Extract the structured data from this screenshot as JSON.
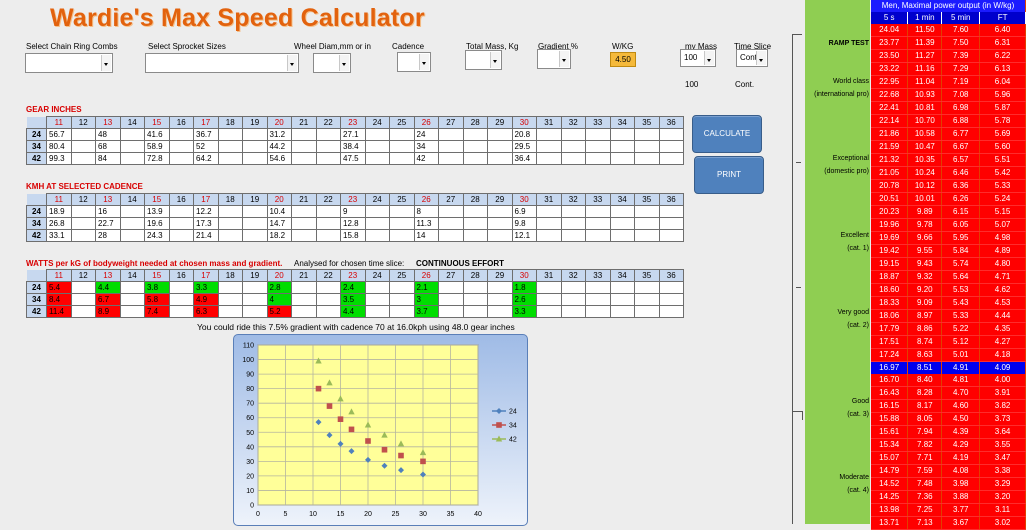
{
  "app": {
    "title": "Wardie's Max Speed Calculator"
  },
  "controls": {
    "chain_ring": {
      "label": "Select Chain Ring Combs",
      "value": ""
    },
    "sprocket": {
      "label": "Select Sprocket Sizes",
      "value": ""
    },
    "wheel": {
      "label": "Wheel Diam,mm or in",
      "value": ""
    },
    "cadence": {
      "label": "Cadence",
      "value": ""
    },
    "mass": {
      "label": "Total Mass, Kg",
      "value": ""
    },
    "gradient": {
      "label": "Gradient %",
      "value": ""
    },
    "wkg": {
      "label": "W/KG",
      "value": "4.50"
    },
    "my_mass": {
      "label": "my Mass",
      "value": "100",
      "below": "100"
    },
    "time_slice": {
      "label": "Time Slice",
      "value": "Cont",
      "below": "Cont."
    }
  },
  "buttons": {
    "calculate": "CALCULATE",
    "print": "PRINT"
  },
  "columns": [
    "11",
    "12",
    "13",
    "14",
    "15",
    "16",
    "17",
    "18",
    "19",
    "20",
    "21",
    "22",
    "23",
    "24",
    "25",
    "26",
    "27",
    "28",
    "29",
    "30",
    "31",
    "32",
    "33",
    "34",
    "35",
    "36"
  ],
  "highlight_columns": [
    "11",
    "13",
    "15",
    "17",
    "20",
    "23",
    "26",
    "30"
  ],
  "gear_inches": {
    "title": "GEAR INCHES",
    "rows": [
      {
        "ring": "24",
        "cells": [
          "56.7",
          "",
          "48",
          "",
          "41.6",
          "",
          "36.7",
          "",
          "",
          "31.2",
          "",
          "",
          "27.1",
          "",
          "",
          "24",
          "",
          "",
          "",
          "20.8",
          "",
          "",
          "",
          "",
          "",
          ""
        ]
      },
      {
        "ring": "34",
        "cells": [
          "80.4",
          "",
          "68",
          "",
          "58.9",
          "",
          "52",
          "",
          "",
          "44.2",
          "",
          "",
          "38.4",
          "",
          "",
          "34",
          "",
          "",
          "",
          "29.5",
          "",
          "",
          "",
          "",
          "",
          ""
        ]
      },
      {
        "ring": "42",
        "cells": [
          "99.3",
          "",
          "84",
          "",
          "72.8",
          "",
          "64.2",
          "",
          "",
          "54.6",
          "",
          "",
          "47.5",
          "",
          "",
          "42",
          "",
          "",
          "",
          "36.4",
          "",
          "",
          "",
          "",
          "",
          ""
        ]
      }
    ]
  },
  "kmh": {
    "title": "KMH AT SELECTED CADENCE",
    "rows": [
      {
        "ring": "24",
        "cells": [
          "18.9",
          "",
          "16",
          "",
          "13.9",
          "",
          "12.2",
          "",
          "",
          "10.4",
          "",
          "",
          "9",
          "",
          "",
          "8",
          "",
          "",
          "",
          "6.9",
          "",
          "",
          "",
          "",
          "",
          ""
        ]
      },
      {
        "ring": "34",
        "cells": [
          "26.8",
          "",
          "22.7",
          "",
          "19.6",
          "",
          "17.3",
          "",
          "",
          "14.7",
          "",
          "",
          "12.8",
          "",
          "",
          "11.3",
          "",
          "",
          "",
          "9.8",
          "",
          "",
          "",
          "",
          "",
          ""
        ]
      },
      {
        "ring": "42",
        "cells": [
          "33.1",
          "",
          "28",
          "",
          "24.3",
          "",
          "21.4",
          "",
          "",
          "18.2",
          "",
          "",
          "15.8",
          "",
          "",
          "14",
          "",
          "",
          "",
          "12.1",
          "",
          "",
          "",
          "",
          "",
          ""
        ]
      }
    ]
  },
  "watts": {
    "title": "WATTS per kG of bodyweight needed at chosen mass and gradient.",
    "analysed_label": "Analysed for chosen time slice:",
    "analysed_value": "CONTINUOUS EFFORT",
    "rows": [
      {
        "ring": "24",
        "cells": [
          "5.4",
          "",
          "4.4",
          "",
          "3.8",
          "",
          "3.3",
          "",
          "",
          "2.8",
          "",
          "",
          "2.4",
          "",
          "",
          "2.1",
          "",
          "",
          "",
          "1.8",
          "",
          "",
          "",
          "",
          "",
          ""
        ],
        "status": [
          "r",
          "",
          "g",
          "",
          "g",
          "",
          "g",
          "",
          "",
          "g",
          "",
          "",
          "g",
          "",
          "",
          "g",
          "",
          "",
          "",
          "g",
          "",
          "",
          "",
          "",
          "",
          ""
        ]
      },
      {
        "ring": "34",
        "cells": [
          "8.4",
          "",
          "6.7",
          "",
          "5.8",
          "",
          "4.9",
          "",
          "",
          "4",
          "",
          "",
          "3.5",
          "",
          "",
          "3",
          "",
          "",
          "",
          "2.6",
          "",
          "",
          "",
          "",
          "",
          ""
        ],
        "status": [
          "r",
          "",
          "r",
          "",
          "r",
          "",
          "r",
          "",
          "",
          "g",
          "",
          "",
          "g",
          "",
          "",
          "g",
          "",
          "",
          "",
          "g",
          "",
          "",
          "",
          "",
          "",
          ""
        ]
      },
      {
        "ring": "42",
        "cells": [
          "11.4",
          "",
          "8.9",
          "",
          "7.4",
          "",
          "6.3",
          "",
          "",
          "5.2",
          "",
          "",
          "4.4",
          "",
          "",
          "3.7",
          "",
          "",
          "",
          "3.3",
          "",
          "",
          "",
          "",
          "",
          ""
        ],
        "status": [
          "r",
          "",
          "r",
          "",
          "r",
          "",
          "r",
          "",
          "",
          "r",
          "",
          "",
          "g",
          "",
          "",
          "g",
          "",
          "",
          "",
          "g",
          "",
          "",
          "",
          "",
          "",
          ""
        ]
      }
    ],
    "summary": "You could ride this 7.5% gradient with cadence 70 at 16.0kph using 48.0 gear inches"
  },
  "chart_data": {
    "type": "scatter",
    "title": "",
    "xlabel": "",
    "ylabel": "",
    "xlim": [
      0,
      40
    ],
    "ylim": [
      0,
      110
    ],
    "xticks": [
      0,
      5,
      10,
      15,
      20,
      25,
      30,
      35,
      40
    ],
    "yticks": [
      0,
      10,
      20,
      30,
      40,
      50,
      60,
      70,
      80,
      90,
      100,
      110
    ],
    "grid": true,
    "legend_position": "right",
    "series": [
      {
        "name": "24",
        "color": "#4f81bd",
        "marker": "diamond",
        "x": [
          11,
          13,
          15,
          17,
          20,
          23,
          26,
          30
        ],
        "y": [
          57,
          48,
          42,
          37,
          31,
          27,
          24,
          21
        ]
      },
      {
        "name": "34",
        "color": "#c0504d",
        "marker": "square",
        "x": [
          11,
          13,
          15,
          17,
          20,
          23,
          26,
          30
        ],
        "y": [
          80,
          68,
          59,
          52,
          44,
          38,
          34,
          30
        ]
      },
      {
        "name": "42",
        "color": "#9bbb59",
        "marker": "triangle",
        "x": [
          11,
          13,
          15,
          17,
          20,
          23,
          26,
          30
        ],
        "y": [
          99,
          84,
          73,
          64,
          55,
          48,
          42,
          36
        ]
      }
    ]
  },
  "sidebar": {
    "labels": [
      "RAMP TEST",
      "World class",
      "(international pro)",
      "Exceptional",
      "(domestic pro)",
      "Excellent",
      "(cat. 1)",
      "Very good",
      "(cat. 2)",
      "Good",
      "(cat. 3)",
      "Moderate",
      "(cat. 4)"
    ]
  },
  "power_table": {
    "title": "Men, Maximal power output (in W/kg)",
    "headers": [
      "5 s",
      "1 min",
      "5 min",
      "FT"
    ],
    "selected_row": 26,
    "rows": [
      [
        "24.04",
        "11.50",
        "7.60",
        "6.40"
      ],
      [
        "23.77",
        "11.39",
        "7.50",
        "6.31"
      ],
      [
        "23.50",
        "11.27",
        "7.39",
        "6.22"
      ],
      [
        "23.22",
        "11.16",
        "7.29",
        "6.13"
      ],
      [
        "22.95",
        "11.04",
        "7.19",
        "6.04"
      ],
      [
        "22.68",
        "10.93",
        "7.08",
        "5.96"
      ],
      [
        "22.41",
        "10.81",
        "6.98",
        "5.87"
      ],
      [
        "22.14",
        "10.70",
        "6.88",
        "5.78"
      ],
      [
        "21.86",
        "10.58",
        "6.77",
        "5.69"
      ],
      [
        "21.59",
        "10.47",
        "6.67",
        "5.60"
      ],
      [
        "21.32",
        "10.35",
        "6.57",
        "5.51"
      ],
      [
        "21.05",
        "10.24",
        "6.46",
        "5.42"
      ],
      [
        "20.78",
        "10.12",
        "6.36",
        "5.33"
      ],
      [
        "20.51",
        "10.01",
        "6.26",
        "5.24"
      ],
      [
        "20.23",
        "9.89",
        "6.15",
        "5.15"
      ],
      [
        "19.96",
        "9.78",
        "6.05",
        "5.07"
      ],
      [
        "19.69",
        "9.66",
        "5.95",
        "4.98"
      ],
      [
        "19.42",
        "9.55",
        "5.84",
        "4.89"
      ],
      [
        "19.15",
        "9.43",
        "5.74",
        "4.80"
      ],
      [
        "18.87",
        "9.32",
        "5.64",
        "4.71"
      ],
      [
        "18.60",
        "9.20",
        "5.53",
        "4.62"
      ],
      [
        "18.33",
        "9.09",
        "5.43",
        "4.53"
      ],
      [
        "18.06",
        "8.97",
        "5.33",
        "4.44"
      ],
      [
        "17.79",
        "8.86",
        "5.22",
        "4.35"
      ],
      [
        "17.51",
        "8.74",
        "5.12",
        "4.27"
      ],
      [
        "17.24",
        "8.63",
        "5.01",
        "4.18"
      ],
      [
        "16.97",
        "8.51",
        "4.91",
        "4.09"
      ],
      [
        "16.70",
        "8.40",
        "4.81",
        "4.00"
      ],
      [
        "16.43",
        "8.28",
        "4.70",
        "3.91"
      ],
      [
        "16.15",
        "8.17",
        "4.60",
        "3.82"
      ],
      [
        "15.88",
        "8.05",
        "4.50",
        "3.73"
      ],
      [
        "15.61",
        "7.94",
        "4.39",
        "3.64"
      ],
      [
        "15.34",
        "7.82",
        "4.29",
        "3.55"
      ],
      [
        "15.07",
        "7.71",
        "4.19",
        "3.47"
      ],
      [
        "14.79",
        "7.59",
        "4.08",
        "3.38"
      ],
      [
        "14.52",
        "7.48",
        "3.98",
        "3.29"
      ],
      [
        "14.25",
        "7.36",
        "3.88",
        "3.20"
      ],
      [
        "13.98",
        "7.25",
        "3.77",
        "3.11"
      ],
      [
        "13.71",
        "7.13",
        "3.67",
        "3.02"
      ]
    ]
  }
}
